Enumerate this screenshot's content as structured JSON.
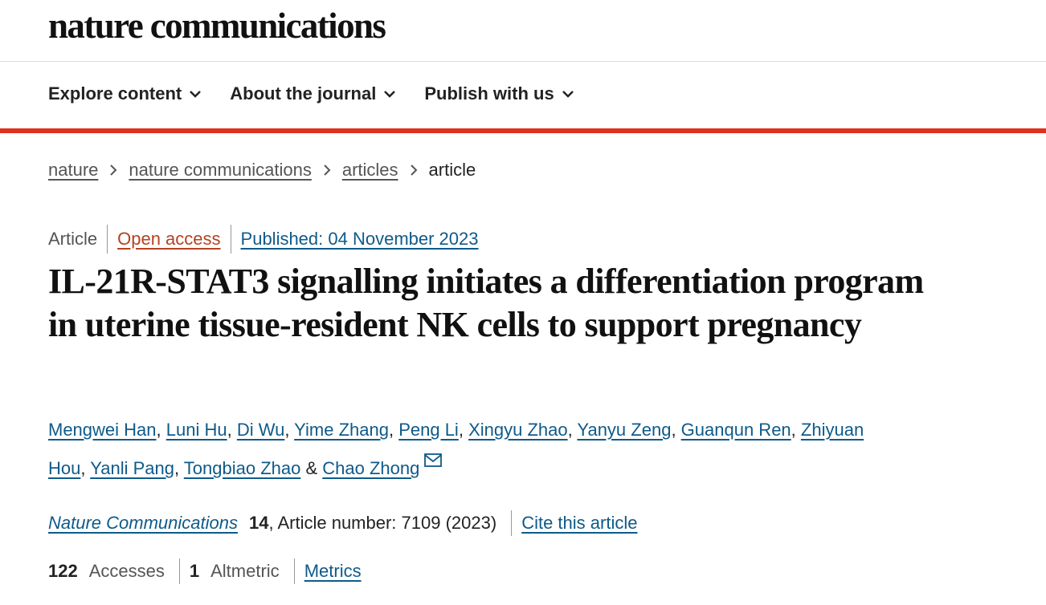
{
  "header": {
    "logo": "nature communications",
    "nav": [
      "Explore content",
      "About the journal",
      "Publish with us"
    ]
  },
  "breadcrumbs": [
    "nature",
    "nature communications",
    "articles",
    "article"
  ],
  "article": {
    "type": "Article",
    "access": "Open access",
    "published": "Published: 04 November 2023",
    "title": "IL-21R-STAT3 signalling initiates a differentiation program in uterine tissue-resident NK cells to support pregnancy",
    "authors": [
      {
        "name": "Mengwei Han",
        "after": ", "
      },
      {
        "name": "Luni Hu",
        "after": ", "
      },
      {
        "name": "Di Wu",
        "after": ", "
      },
      {
        "name": "Yime Zhang",
        "after": ", "
      },
      {
        "name": "Peng Li",
        "after": ", "
      },
      {
        "name": "Xingyu Zhao",
        "after": ", "
      },
      {
        "name": "Yanyu Zeng",
        "after": ", "
      },
      {
        "name": "Guanqun Ren",
        "after": ", "
      },
      {
        "name": "Zhiyuan Hou",
        "after": ", "
      },
      {
        "name": "Yanli Pang",
        "after": ", "
      },
      {
        "name": "Tongbiao Zhao",
        "after": " & "
      },
      {
        "name": "Chao Zhong"
      }
    ],
    "citation": {
      "journal": "Nature Communications",
      "volume": "14",
      "details": ", Article number: 7109 (2023)",
      "cite_link": "Cite this article"
    },
    "metrics": {
      "accesses_count": "122",
      "accesses_label": "Accesses",
      "altmetric_count": "1",
      "altmetric_label": "Altmetric",
      "metrics_link": "Metrics"
    }
  }
}
